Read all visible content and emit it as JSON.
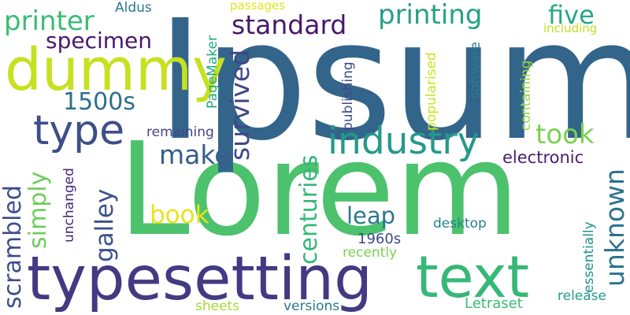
{
  "words": [
    {
      "text": "Lorem",
      "color": "#4cc26d"
    },
    {
      "text": "Ipsum",
      "color": "#33658b"
    },
    {
      "text": "typesetting",
      "color": "#433a83"
    },
    {
      "text": "text",
      "color": "#37b878"
    },
    {
      "text": "dummy",
      "color": "#c7e020"
    },
    {
      "text": "industry",
      "color": "#24998b"
    },
    {
      "text": "type",
      "color": "#3e4e88"
    },
    {
      "text": "printer",
      "color": "#3bbb75"
    },
    {
      "text": "printing",
      "color": "#25a085"
    },
    {
      "text": "standard",
      "color": "#48196b"
    },
    {
      "text": "specimen",
      "color": "#48196b"
    },
    {
      "text": "1500s",
      "color": "#2d708e"
    },
    {
      "text": "five",
      "color": "#26a884"
    },
    {
      "text": "took",
      "color": "#7ad151"
    },
    {
      "text": "make",
      "color": "#365d8d"
    },
    {
      "text": "book",
      "color": "#e7e419"
    },
    {
      "text": "electronic",
      "color": "#481d6f"
    },
    {
      "text": "leap",
      "color": "#2a788e"
    },
    {
      "text": "desktop",
      "color": "#26828e"
    },
    {
      "text": "1960s",
      "color": "#3f4788"
    },
    {
      "text": "recently",
      "color": "#7ad151"
    },
    {
      "text": "remaining",
      "color": "#414487"
    },
    {
      "text": "sheets",
      "color": "#a5db36"
    },
    {
      "text": "versions",
      "color": "#2a788e"
    },
    {
      "text": "Letraset",
      "color": "#3bbb75"
    },
    {
      "text": "release",
      "color": "#1f9e89"
    },
    {
      "text": "Aldus",
      "color": "#2a788e"
    },
    {
      "text": "passages",
      "color": "#e3e418"
    },
    {
      "text": "including",
      "color": "#c2df23"
    },
    {
      "text": "survived",
      "color": "#404688"
    },
    {
      "text": "scrambled",
      "color": "#3e4c8a"
    },
    {
      "text": "simply",
      "color": "#6ccd5a"
    },
    {
      "text": "galley",
      "color": "#3b528b"
    },
    {
      "text": "unchanged",
      "color": "#482677"
    },
    {
      "text": "centuries",
      "color": "#35b779"
    },
    {
      "text": "PageMaker",
      "color": "#22a884"
    },
    {
      "text": "publishing",
      "color": "#3e4989"
    },
    {
      "text": "popularised",
      "color": "#d0e11c"
    },
    {
      "text": "containing",
      "color": "#95d840"
    },
    {
      "text": "software",
      "color": "#287c8e"
    },
    {
      "text": "unknown",
      "color": "#2c728e"
    },
    {
      "text": "essentially",
      "color": "#21918c"
    }
  ]
}
